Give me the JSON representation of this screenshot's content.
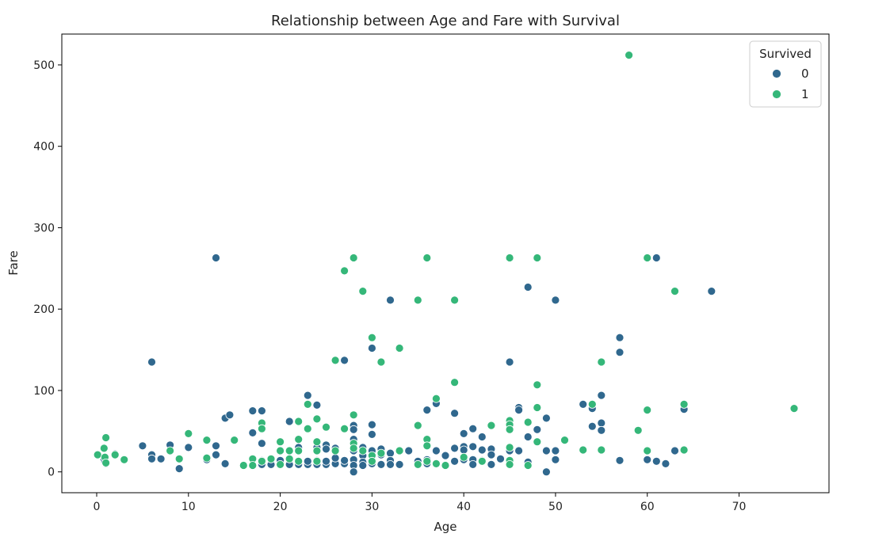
{
  "chart_data": {
    "type": "scatter",
    "title": "Relationship between Age and Fare with Survival",
    "xlabel": "Age",
    "ylabel": "Fare",
    "xlim": [
      -3.8,
      79.8
    ],
    "ylim": [
      -25.6,
      537.9
    ],
    "xticks": [
      0,
      10,
      20,
      30,
      40,
      50,
      60,
      70
    ],
    "yticks": [
      0,
      100,
      200,
      300,
      400,
      500
    ],
    "grid": false,
    "legend": {
      "title": "Survived",
      "position": "top-right"
    },
    "series": [
      {
        "name": "0",
        "color": "#30688e",
        "points": [
          [
            0.8,
            15
          ],
          [
            0.9,
            12
          ],
          [
            1,
            10
          ],
          [
            2,
            22
          ],
          [
            5,
            32
          ],
          [
            6,
            135
          ],
          [
            6,
            21
          ],
          [
            6,
            16
          ],
          [
            7,
            16
          ],
          [
            8,
            33
          ],
          [
            9,
            4
          ],
          [
            10,
            30
          ],
          [
            12,
            15
          ],
          [
            13,
            263
          ],
          [
            13,
            32
          ],
          [
            13,
            21
          ],
          [
            14,
            66
          ],
          [
            14.5,
            70
          ],
          [
            14,
            10
          ],
          [
            17,
            75
          ],
          [
            17,
            48
          ],
          [
            18,
            75
          ],
          [
            18,
            35
          ],
          [
            18,
            14
          ],
          [
            18,
            9
          ],
          [
            19,
            9
          ],
          [
            20,
            9
          ],
          [
            20,
            14
          ],
          [
            21,
            62
          ],
          [
            21,
            9
          ],
          [
            22,
            30
          ],
          [
            22,
            12
          ],
          [
            22,
            9
          ],
          [
            23,
            94
          ],
          [
            23,
            9
          ],
          [
            23,
            13
          ],
          [
            24,
            82
          ],
          [
            24,
            30
          ],
          [
            24,
            9
          ],
          [
            24,
            14
          ],
          [
            25,
            33
          ],
          [
            25,
            28
          ],
          [
            25,
            9
          ],
          [
            25,
            13
          ],
          [
            26,
            10
          ],
          [
            26,
            29
          ],
          [
            26,
            17
          ],
          [
            27,
            137
          ],
          [
            27,
            10
          ],
          [
            27,
            14
          ],
          [
            28,
            57
          ],
          [
            28,
            52
          ],
          [
            28,
            40
          ],
          [
            28,
            26
          ],
          [
            28,
            15
          ],
          [
            28,
            8
          ],
          [
            28,
            0
          ],
          [
            29,
            30
          ],
          [
            29,
            20
          ],
          [
            29,
            12
          ],
          [
            29,
            8
          ],
          [
            30,
            58
          ],
          [
            30,
            46
          ],
          [
            30,
            152
          ],
          [
            30,
            26
          ],
          [
            30,
            10
          ],
          [
            31,
            28
          ],
          [
            31,
            21
          ],
          [
            31,
            9
          ],
          [
            32,
            211
          ],
          [
            32,
            23
          ],
          [
            32,
            14
          ],
          [
            32,
            9
          ],
          [
            33,
            26
          ],
          [
            33,
            9
          ],
          [
            34,
            26
          ],
          [
            35,
            13
          ],
          [
            35,
            9
          ],
          [
            36,
            76
          ],
          [
            36,
            15
          ],
          [
            36,
            10
          ],
          [
            37,
            84
          ],
          [
            37,
            26
          ],
          [
            38,
            20
          ],
          [
            38,
            8
          ],
          [
            39,
            72
          ],
          [
            39,
            29
          ],
          [
            39,
            13
          ],
          [
            40,
            47
          ],
          [
            40,
            31
          ],
          [
            40,
            27
          ],
          [
            40,
            15
          ],
          [
            41,
            53
          ],
          [
            41,
            31
          ],
          [
            41,
            15
          ],
          [
            41,
            9
          ],
          [
            42,
            43
          ],
          [
            42,
            27
          ],
          [
            42,
            14
          ],
          [
            43,
            28
          ],
          [
            43,
            21
          ],
          [
            43,
            9
          ],
          [
            44,
            16
          ],
          [
            45,
            135
          ],
          [
            45,
            26
          ],
          [
            46,
            79
          ],
          [
            46,
            76
          ],
          [
            46,
            26
          ],
          [
            47,
            227
          ],
          [
            47,
            43
          ],
          [
            47,
            12
          ],
          [
            48,
            52
          ],
          [
            49,
            66
          ],
          [
            49,
            26
          ],
          [
            49,
            0
          ],
          [
            50,
            211
          ],
          [
            50,
            26
          ],
          [
            50,
            15
          ],
          [
            53,
            83
          ],
          [
            54,
            56
          ],
          [
            54,
            78
          ],
          [
            55,
            94
          ],
          [
            55,
            60
          ],
          [
            55,
            51
          ],
          [
            57,
            165
          ],
          [
            57,
            147
          ],
          [
            57,
            14
          ],
          [
            60,
            15
          ],
          [
            61,
            263
          ],
          [
            61,
            13
          ],
          [
            62,
            10
          ],
          [
            63,
            26
          ],
          [
            64,
            77
          ],
          [
            67,
            222
          ]
        ]
      },
      {
        "name": "1",
        "color": "#35b779",
        "points": [
          [
            0.1,
            21
          ],
          [
            0.8,
            29
          ],
          [
            0.9,
            18
          ],
          [
            1,
            42
          ],
          [
            1,
            11
          ],
          [
            2,
            21
          ],
          [
            3,
            15
          ],
          [
            8,
            26
          ],
          [
            9,
            16
          ],
          [
            10,
            47
          ],
          [
            12,
            39
          ],
          [
            12,
            17
          ],
          [
            15,
            39
          ],
          [
            16,
            8
          ],
          [
            17,
            16
          ],
          [
            17,
            8
          ],
          [
            18,
            60
          ],
          [
            18,
            53
          ],
          [
            18,
            13
          ],
          [
            19,
            16
          ],
          [
            20,
            37
          ],
          [
            20,
            26
          ],
          [
            20,
            9
          ],
          [
            21,
            26
          ],
          [
            21,
            16
          ],
          [
            22,
            62
          ],
          [
            22,
            40
          ],
          [
            22,
            26
          ],
          [
            22,
            13
          ],
          [
            23,
            83
          ],
          [
            23,
            53
          ],
          [
            24,
            65
          ],
          [
            24,
            37
          ],
          [
            24,
            26
          ],
          [
            24,
            13
          ],
          [
            25,
            55
          ],
          [
            26,
            137
          ],
          [
            26,
            26
          ],
          [
            27,
            247
          ],
          [
            27,
            53
          ],
          [
            28,
            263
          ],
          [
            28,
            70
          ],
          [
            28,
            35
          ],
          [
            28,
            29
          ],
          [
            29,
            222
          ],
          [
            29,
            26
          ],
          [
            30,
            165
          ],
          [
            30,
            20
          ],
          [
            30,
            13
          ],
          [
            31,
            135
          ],
          [
            31,
            23
          ],
          [
            33,
            152
          ],
          [
            33,
            26
          ],
          [
            35,
            211
          ],
          [
            35,
            57
          ],
          [
            35,
            9
          ],
          [
            36,
            263
          ],
          [
            36,
            40
          ],
          [
            36,
            32
          ],
          [
            36,
            13
          ],
          [
            37,
            90
          ],
          [
            37,
            10
          ],
          [
            38,
            8
          ],
          [
            39,
            211
          ],
          [
            39,
            110
          ],
          [
            40,
            18
          ],
          [
            42,
            13
          ],
          [
            43,
            57
          ],
          [
            45,
            263
          ],
          [
            45,
            63
          ],
          [
            45,
            58
          ],
          [
            45,
            52
          ],
          [
            45,
            30
          ],
          [
            45,
            14
          ],
          [
            45,
            9
          ],
          [
            47,
            61
          ],
          [
            47,
            8
          ],
          [
            48,
            263
          ],
          [
            48,
            107
          ],
          [
            48,
            79
          ],
          [
            48,
            37
          ],
          [
            51,
            39
          ],
          [
            53,
            27
          ],
          [
            54,
            83
          ],
          [
            55,
            135
          ],
          [
            55,
            27
          ],
          [
            58,
            512
          ],
          [
            59,
            51
          ],
          [
            60,
            263
          ],
          [
            60,
            76
          ],
          [
            60,
            26
          ],
          [
            63,
            222
          ],
          [
            64,
            83
          ],
          [
            64,
            27
          ],
          [
            76,
            78
          ]
        ]
      }
    ]
  }
}
